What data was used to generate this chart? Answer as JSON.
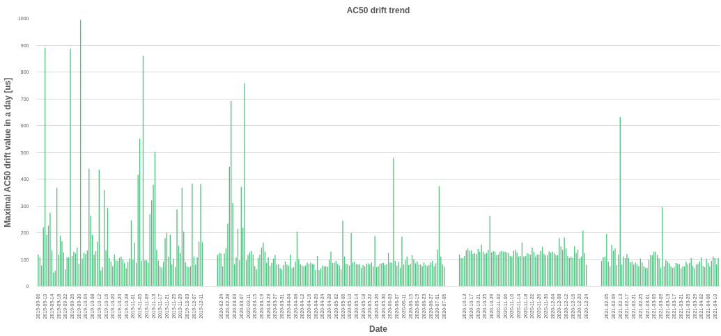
{
  "chart_data": {
    "type": "bar",
    "title": "AC50 drift trend",
    "xlabel": "Date",
    "ylabel": "Maximal AC50 drift value in a day [us]",
    "color": "#4cc47e",
    "ylim": [
      0,
      1000
    ],
    "yticks": [
      0,
      100,
      200,
      300,
      400,
      500,
      600,
      700,
      800,
      900,
      1000
    ],
    "grid": "y",
    "categories": [
      "2019-09-06",
      null,
      null,
      null,
      "2019-09-10",
      null,
      null,
      null,
      "2019-09-14",
      null,
      null,
      null,
      "2019-09-18",
      null,
      null,
      null,
      "2019-09-22",
      null,
      null,
      null,
      "2019-09-26",
      null,
      null,
      null,
      "2019-09-30",
      null,
      null,
      null,
      "2019-10-04",
      null,
      null,
      null,
      "2019-10-08",
      null,
      null,
      null,
      "2019-10-12",
      null,
      null,
      null,
      "2019-10-16",
      null,
      null,
      null,
      "2019-10-20",
      null,
      null,
      null,
      "2019-10-24",
      null,
      null,
      null,
      "2019-10-28",
      null,
      null,
      null,
      "2019-11-01",
      null,
      null,
      null,
      "2019-11-05",
      null,
      null,
      null,
      "2019-11-09",
      null,
      null,
      null,
      "2019-11-13",
      null,
      null,
      null,
      "2019-11-17",
      null,
      null,
      null,
      "2019-11-21",
      null,
      null,
      null,
      "2019-11-25",
      null,
      null,
      null,
      "2019-11-29",
      null,
      null,
      null,
      "2019-12-03",
      null,
      null,
      null,
      "2019-12-07",
      null,
      null,
      null,
      "2019-12-11",
      null,
      null,
      null,
      null,
      null,
      null,
      null,
      null,
      null,
      null,
      null,
      "2020-02-24",
      null,
      null,
      null,
      "2020-02-28",
      null,
      null,
      null,
      "2020-03-03",
      null,
      null,
      null,
      "2020-03-07",
      null,
      null,
      null,
      "2020-03-11",
      null,
      null,
      null,
      "2020-03-15",
      null,
      null,
      null,
      "2020-03-19",
      null,
      null,
      null,
      "2020-03-23",
      null,
      null,
      null,
      "2020-03-27",
      null,
      null,
      null,
      "2020-03-31",
      null,
      null,
      null,
      "2020-04-04",
      null,
      null,
      null,
      "2020-04-08",
      null,
      null,
      null,
      "2020-04-12",
      null,
      null,
      null,
      "2020-04-16",
      null,
      null,
      null,
      "2020-04-20",
      null,
      null,
      null,
      "2020-04-24",
      null,
      null,
      null,
      "2020-04-28",
      null,
      null,
      null,
      "2020-05-02",
      null,
      null,
      null,
      "2020-05-06",
      null,
      null,
      null,
      "2020-05-10",
      null,
      null,
      null,
      "2020-05-14",
      null,
      null,
      null,
      "2020-05-18",
      null,
      null,
      null,
      "2020-05-22",
      null,
      null,
      null,
      "2020-05-26",
      null,
      null,
      null,
      "2020-05-30",
      null,
      null,
      null,
      "2020-06-03",
      null,
      null,
      null,
      "2020-06-07",
      null,
      null,
      null,
      "2020-06-11",
      null,
      null,
      null,
      "2020-06-15",
      null,
      null,
      null,
      "2020-06-19",
      null,
      null,
      null,
      "2020-06-23",
      null,
      null,
      null,
      "2020-06-27",
      null,
      null,
      null,
      "2020-07-01",
      null,
      null,
      null,
      "2020-07-05",
      null,
      null,
      null,
      null,
      null,
      null,
      null,
      null,
      null,
      null,
      null,
      "2020-10-13",
      null,
      null,
      null,
      "2020-10-17",
      null,
      null,
      null,
      "2020-10-21",
      null,
      null,
      null,
      "2020-10-25",
      null,
      null,
      null,
      "2020-10-29",
      null,
      null,
      null,
      "2020-11-02",
      null,
      null,
      null,
      "2020-11-06",
      null,
      null,
      null,
      "2020-11-10",
      null,
      null,
      null,
      "2020-11-14",
      null,
      null,
      null,
      "2020-11-18",
      null,
      null,
      null,
      "2020-11-22",
      null,
      null,
      null,
      "2020-11-26",
      null,
      null,
      null,
      "2020-11-30",
      null,
      null,
      null,
      "2020-12-04",
      null,
      null,
      null,
      "2020-12-08",
      null,
      null,
      null,
      "2020-12-12",
      null,
      null,
      null,
      "2020-12-16",
      null,
      null,
      null,
      "2020-12-20",
      null,
      null,
      null,
      "2020-12-24",
      null,
      null,
      null,
      null,
      null,
      null,
      null,
      null,
      null,
      null,
      null,
      "2021-02-05",
      null,
      null,
      null,
      "2021-02-09",
      null,
      null,
      null,
      "2021-02-13",
      null,
      null,
      null,
      "2021-02-17",
      null,
      null,
      null,
      "2021-02-21",
      null,
      null,
      null,
      "2021-02-25",
      null,
      null,
      null,
      "2021-03-01",
      null,
      null,
      null,
      "2021-03-05",
      null,
      null,
      null,
      "2021-03-09",
      null,
      null,
      null,
      "2021-03-13",
      null,
      null,
      null,
      "2021-03-17",
      null,
      null,
      null,
      "2021-03-21",
      null,
      null,
      null,
      "2021-03-25",
      null,
      null,
      null,
      "2021-03-29",
      null,
      null,
      null,
      "2021-04-02",
      null,
      null,
      null,
      "2021-04-06",
      null,
      null,
      null,
      "2021-04-10",
      null,
      null
    ],
    "values": [
      118,
      108,
      77,
      220,
      890,
      192,
      226,
      274,
      134,
      51,
      58,
      368,
      118,
      189,
      168,
      126,
      63,
      108,
      108,
      887,
      113,
      129,
      123,
      145,
      84,
      995,
      103,
      126,
      121,
      134,
      439,
      263,
      191,
      118,
      131,
      166,
      435,
      59,
      71,
      360,
      134,
      292,
      106,
      92,
      75,
      118,
      97,
      95,
      106,
      111,
      99,
      87,
      66,
      91,
      103,
      246,
      99,
      163,
      88,
      416,
      551,
      95,
      861,
      97,
      97,
      88,
      269,
      321,
      379,
      502,
      136,
      96,
      75,
      69,
      91,
      180,
      200,
      111,
      192,
      81,
      103,
      72,
      287,
      151,
      125,
      368,
      204,
      89,
      74,
      71,
      74,
      384,
      111,
      81,
      108,
      166,
      382,
      164,
      null,
      null,
      null,
      null,
      null,
      null,
      null,
      null,
      116,
      124,
      123,
      74,
      123,
      142,
      234,
      447,
      692,
      311,
      82,
      108,
      215,
      97,
      371,
      218,
      758,
      97,
      117,
      126,
      132,
      118,
      75,
      63,
      106,
      118,
      145,
      163,
      129,
      88,
      108,
      77,
      87,
      103,
      116,
      81,
      82,
      68,
      63,
      79,
      93,
      81,
      77,
      118,
      68,
      71,
      93,
      203,
      101,
      82,
      77,
      75,
      77,
      88,
      84,
      88,
      84,
      82,
      61,
      113,
      60,
      66,
      77,
      75,
      75,
      73,
      99,
      129,
      87,
      88,
      95,
      82,
      77,
      63,
      245,
      111,
      84,
      82,
      77,
      199,
      89,
      93,
      82,
      82,
      81,
      69,
      79,
      74,
      84,
      86,
      81,
      89,
      75,
      187,
      71,
      75,
      84,
      86,
      88,
      79,
      82,
      125,
      88,
      88,
      479,
      95,
      77,
      91,
      69,
      185,
      81,
      97,
      111,
      79,
      84,
      116,
      101,
      86,
      93,
      81,
      81,
      75,
      89,
      79,
      75,
      79,
      89,
      95,
      74,
      86,
      137,
      374,
      111,
      81,
      73,
      null,
      null,
      null,
      null,
      null,
      null,
      null,
      null,
      118,
      105,
      105,
      113,
      134,
      141,
      132,
      134,
      121,
      124,
      121,
      139,
      129,
      155,
      129,
      121,
      124,
      136,
      263,
      126,
      132,
      129,
      116,
      118,
      129,
      132,
      129,
      129,
      126,
      124,
      113,
      111,
      132,
      136,
      126,
      111,
      113,
      163,
      111,
      113,
      124,
      121,
      118,
      145,
      129,
      111,
      118,
      118,
      132,
      147,
      121,
      116,
      116,
      129,
      125,
      129,
      124,
      116,
      116,
      180,
      149,
      136,
      182,
      142,
      113,
      105,
      111,
      105,
      149,
      124,
      137,
      103,
      111,
      208,
      124,
      80,
      null,
      null,
      null,
      null,
      null,
      null,
      null,
      null,
      95,
      108,
      111,
      196,
      92,
      74,
      155,
      132,
      141,
      79,
      118,
      632,
      81,
      111,
      105,
      121,
      105,
      89,
      92,
      81,
      89,
      81,
      74,
      103,
      89,
      74,
      68,
      68,
      100,
      116,
      116,
      129,
      129,
      116,
      104,
      68,
      295,
      74,
      97,
      92,
      86,
      74,
      68,
      71,
      87,
      84,
      82,
      66,
      75,
      75,
      92,
      82,
      87,
      105,
      76,
      66,
      81,
      84,
      92,
      108,
      76,
      71,
      103,
      87,
      74,
      95,
      111,
      105,
      82,
      105
    ]
  }
}
